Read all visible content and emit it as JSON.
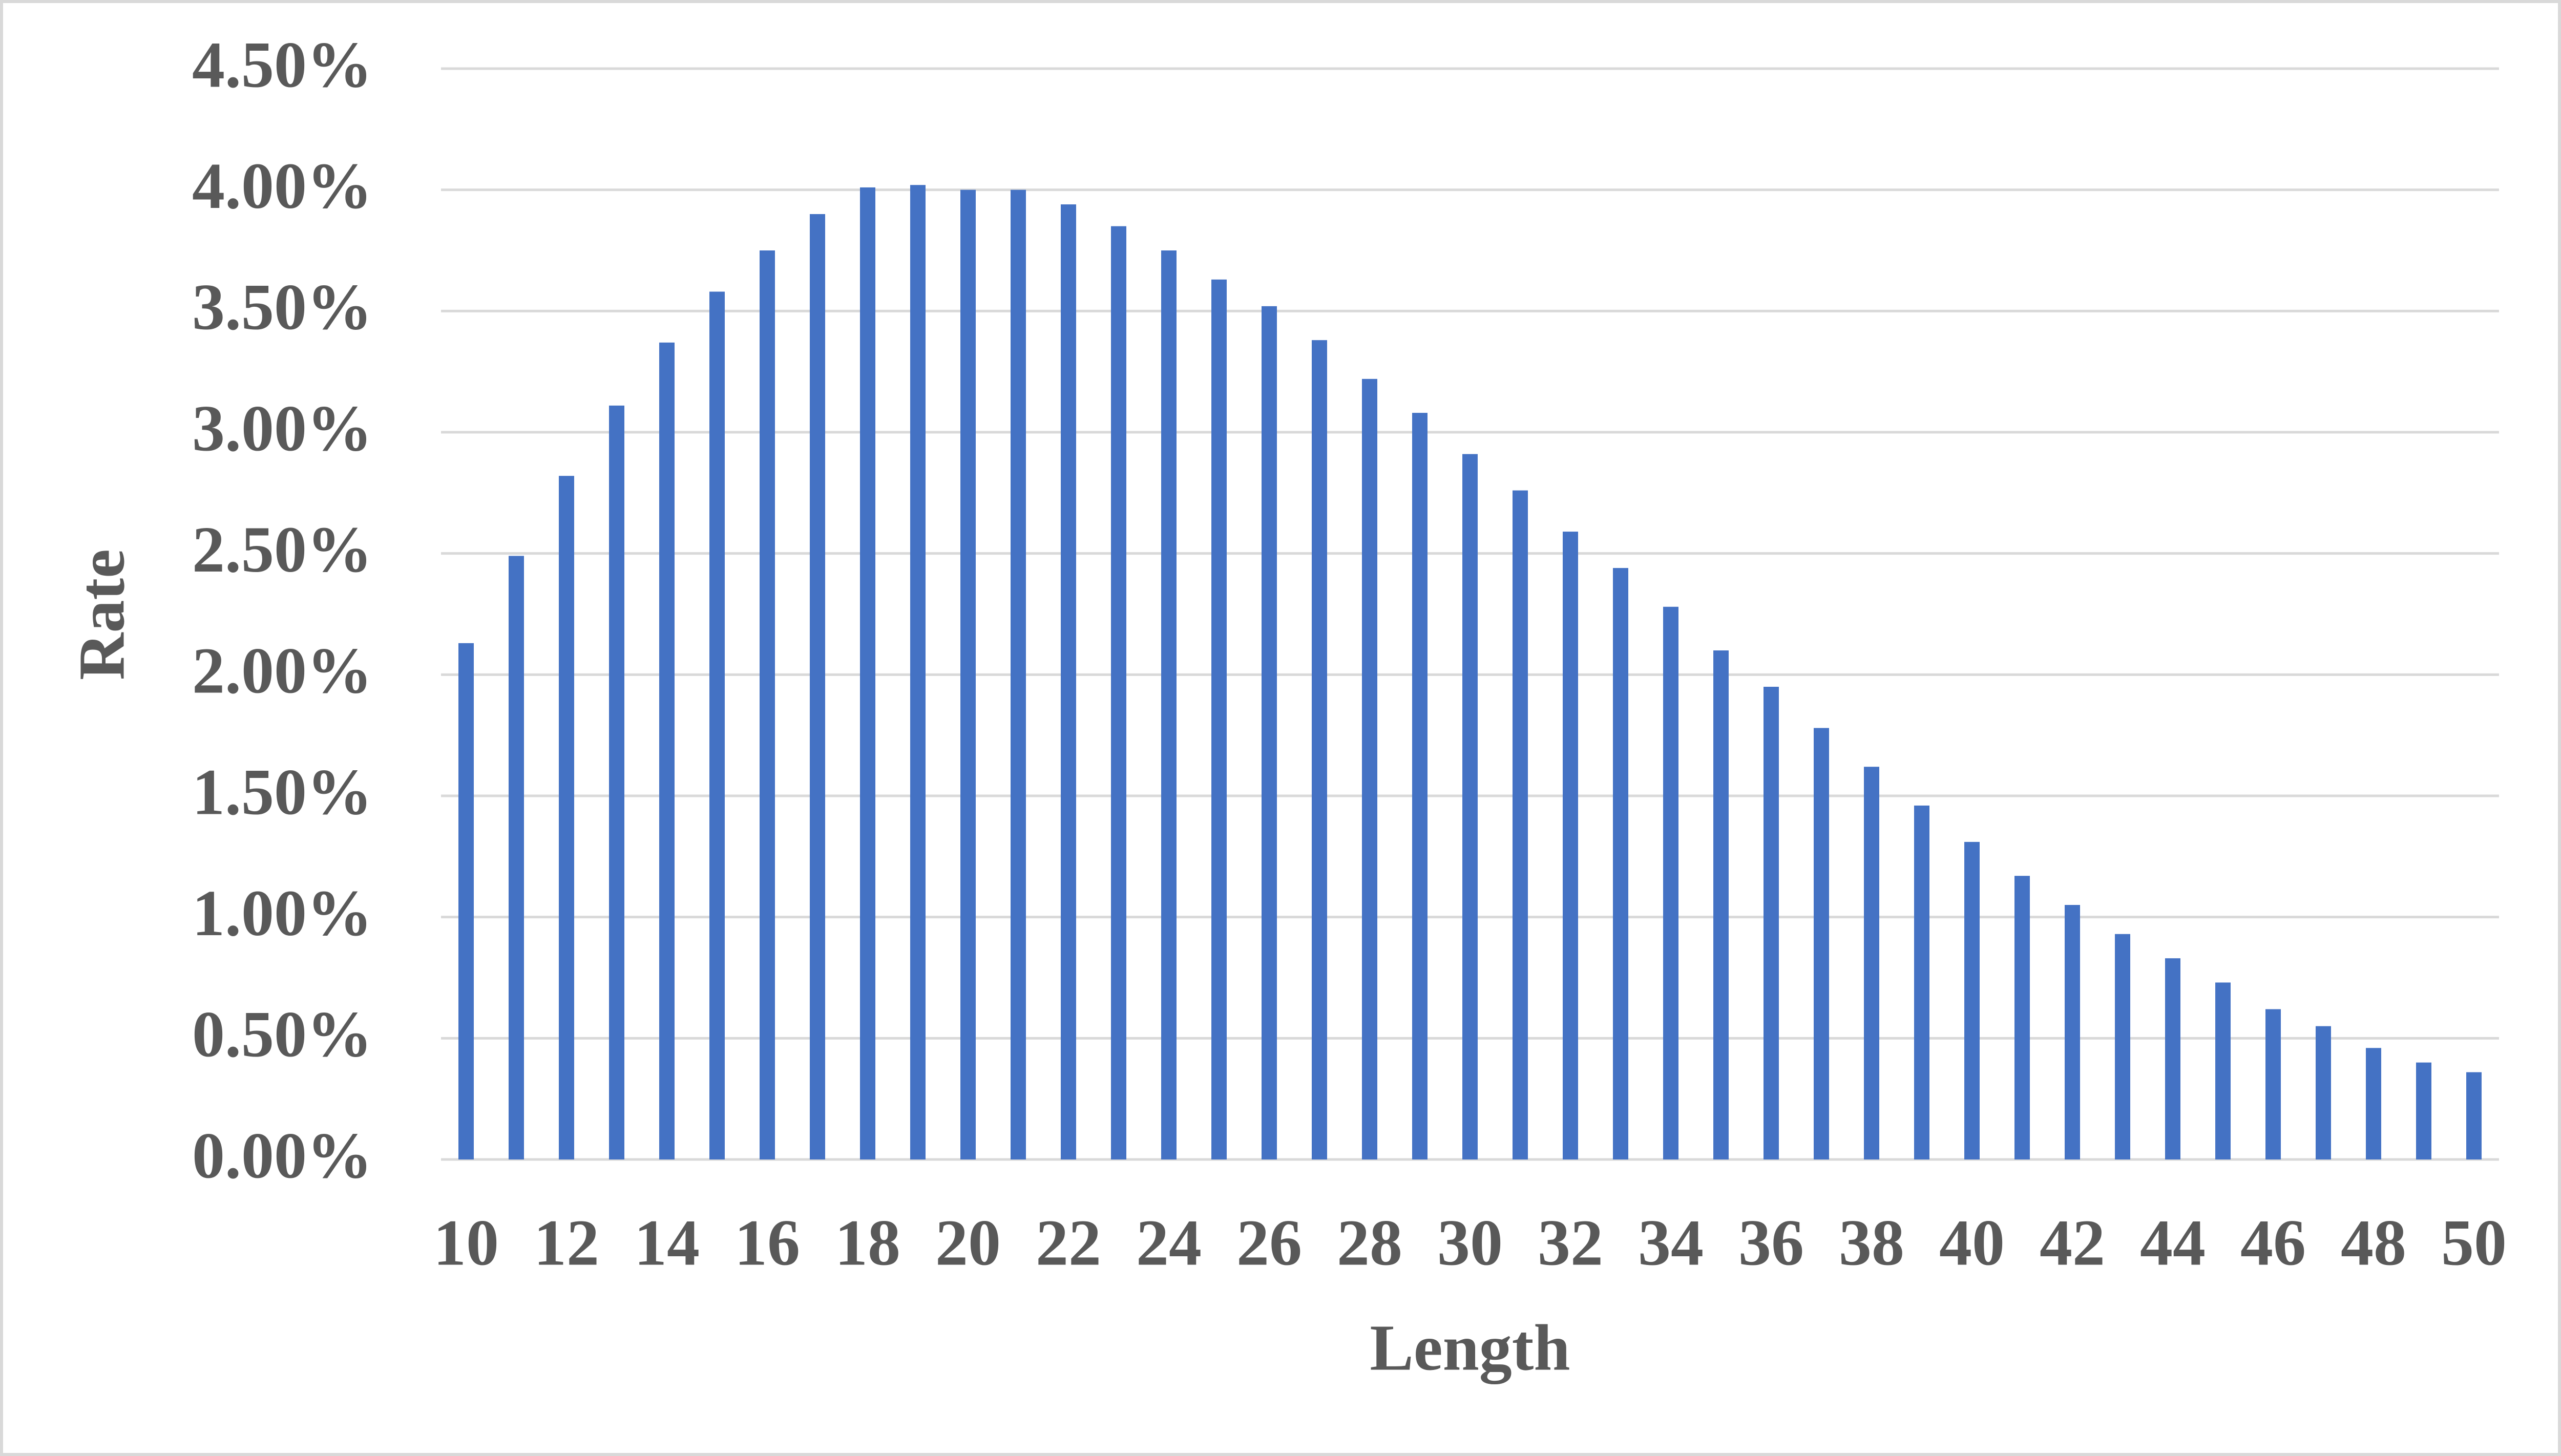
{
  "chart_data": {
    "type": "bar",
    "x_label": "Length",
    "y_label": "Rate",
    "categories": [
      "10",
      null,
      "12",
      null,
      "14",
      null,
      "16",
      null,
      "18",
      null,
      "20",
      null,
      "22",
      null,
      "24",
      null,
      "26",
      null,
      "28",
      null,
      "30",
      null,
      "32",
      null,
      "34",
      null,
      "36",
      null,
      "38",
      null,
      "40",
      null,
      "42",
      null,
      "44",
      null,
      "46",
      null,
      "48",
      null,
      "50"
    ],
    "values": [
      2.13,
      2.49,
      2.82,
      3.11,
      3.37,
      3.58,
      3.75,
      3.9,
      4.01,
      4.02,
      4.0,
      4.0,
      3.94,
      3.85,
      3.75,
      3.63,
      3.52,
      3.38,
      3.22,
      3.08,
      2.91,
      2.76,
      2.59,
      2.44,
      2.28,
      2.1,
      1.95,
      1.78,
      1.62,
      1.46,
      1.31,
      1.17,
      1.05,
      0.93,
      0.83,
      0.73,
      0.62,
      0.55,
      0.46,
      0.4,
      0.36
    ],
    "color": "#4472c4",
    "ylim": [
      0,
      4.5
    ],
    "yticks": [
      {
        "value": 0,
        "label": "0.00%"
      },
      {
        "value": 0.5,
        "label": "0.50%"
      },
      {
        "value": 1,
        "label": "1.00%"
      },
      {
        "value": 1.5,
        "label": "1.50%"
      },
      {
        "value": 2,
        "label": "2.00%"
      },
      {
        "value": 2.5,
        "label": "2.50%"
      },
      {
        "value": 3,
        "label": "3.00%"
      },
      {
        "value": 3.5,
        "label": "3.50%"
      },
      {
        "value": 4,
        "label": "4.00%"
      },
      {
        "value": 4.5,
        "label": "4.50%"
      }
    ],
    "grid": true
  }
}
